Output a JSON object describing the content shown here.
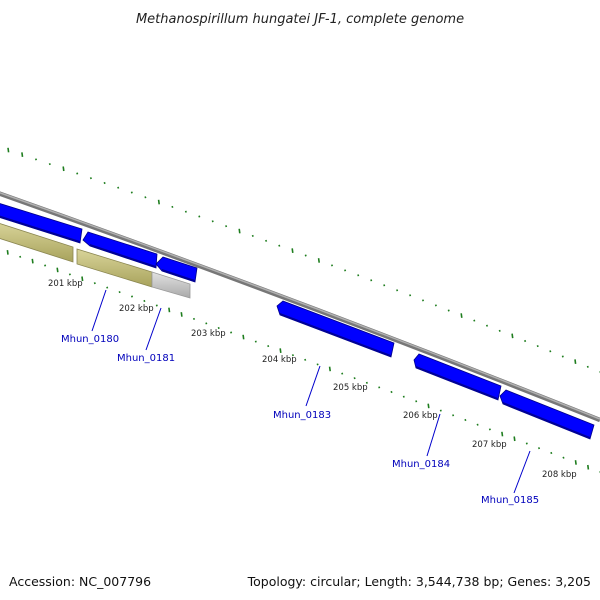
{
  "title": "Methanospirillum hungatei JF-1, complete genome",
  "footer": {
    "accession": "Accession: NC_007796",
    "summary": "Topology: circular; Length: 3,544,738 bp; Genes: 3,205"
  },
  "ruler_labels": [
    "201 kbp",
    "202 kbp",
    "203 kbp",
    "204 kbp",
    "205 kbp",
    "206 kbp",
    "207 kbp",
    "208 kbp"
  ],
  "genes": [
    {
      "name": "Mhun_0180",
      "clickable": true
    },
    {
      "name": "Mhun_0181",
      "clickable": true
    },
    {
      "name": "Mhun_0183",
      "clickable": true
    },
    {
      "name": "Mhun_0184",
      "clickable": true
    },
    {
      "name": "Mhun_0185",
      "clickable": true
    }
  ],
  "colors": {
    "backbone": "#888888",
    "gene_fill": "#0000ff",
    "gene_shade": "#000099",
    "feature_olive": "#bdb876",
    "feature_olive_dark": "#8a8650",
    "feature_grey": "#c8c8c8",
    "gc_marks": "#1e7d1e",
    "label_line": "#0000cc"
  },
  "icons": [
    "gene-arrow-icon"
  ]
}
